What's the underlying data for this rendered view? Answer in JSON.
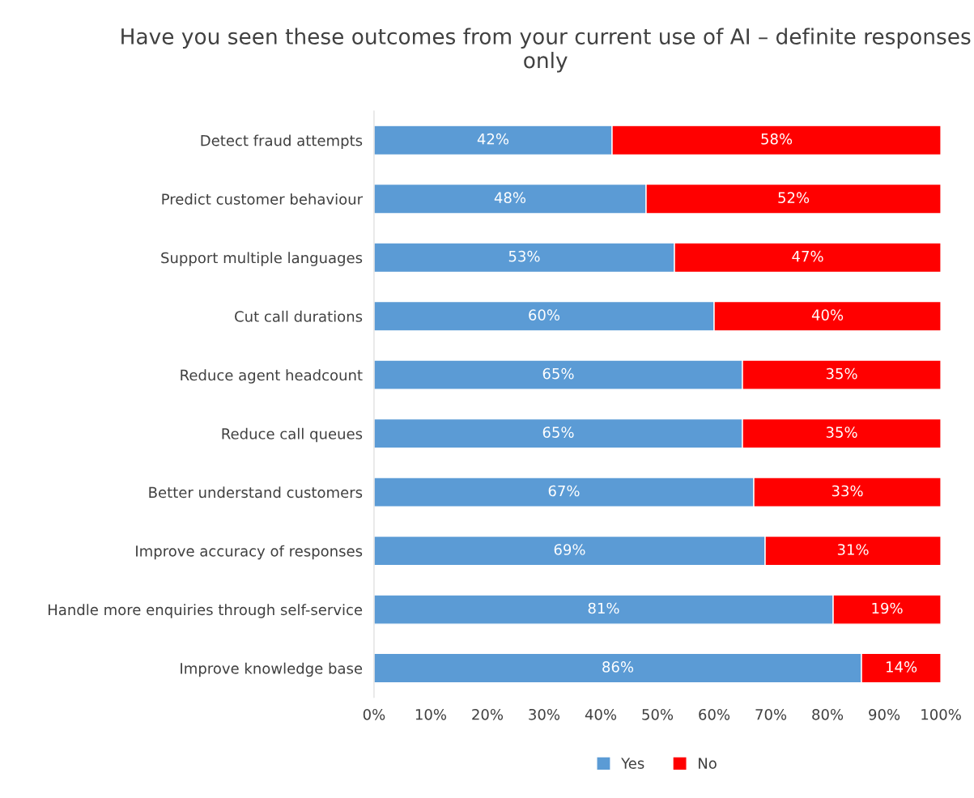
{
  "chart_data": {
    "type": "bar",
    "orientation": "horizontal",
    "stacked": true,
    "title": "Have you seen these outcomes from your current use of AI – definite responses only",
    "categories": [
      "Detect fraud attempts",
      "Predict customer behaviour",
      "Support multiple languages",
      "Cut call durations",
      "Reduce agent headcount",
      "Reduce call queues",
      "Better understand customers",
      "Improve accuracy of responses",
      "Handle more enquiries through self-service",
      "Improve knowledge base"
    ],
    "series": [
      {
        "name": "Yes",
        "color": "#5b9bd5",
        "values": [
          42,
          48,
          53,
          60,
          65,
          65,
          67,
          69,
          81,
          86
        ]
      },
      {
        "name": "No",
        "color": "#ff0000",
        "values": [
          58,
          52,
          47,
          40,
          35,
          35,
          33,
          31,
          19,
          14
        ]
      }
    ],
    "value_labels": [
      [
        "42%",
        "48%",
        "53%",
        "60%",
        "65%",
        "65%",
        "67%",
        "69%",
        "81%",
        "86%"
      ],
      [
        "58%",
        "52%",
        "47%",
        "40%",
        "35%",
        "35%",
        "33%",
        "31%",
        "19%",
        "14%"
      ]
    ],
    "xlim": [
      0,
      100
    ],
    "xticks": [
      {
        "value": 0,
        "label": "0%"
      },
      {
        "value": 10,
        "label": "10%"
      },
      {
        "value": 20,
        "label": "20%"
      },
      {
        "value": 30,
        "label": "30%"
      },
      {
        "value": 40,
        "label": "40%"
      },
      {
        "value": 50,
        "label": "50%"
      },
      {
        "value": 60,
        "label": "60%"
      },
      {
        "value": 70,
        "label": "70%"
      },
      {
        "value": 80,
        "label": "80%"
      },
      {
        "value": 90,
        "label": "90%"
      },
      {
        "value": 100,
        "label": "100%"
      }
    ],
    "grid": false,
    "legend": "bottom"
  }
}
